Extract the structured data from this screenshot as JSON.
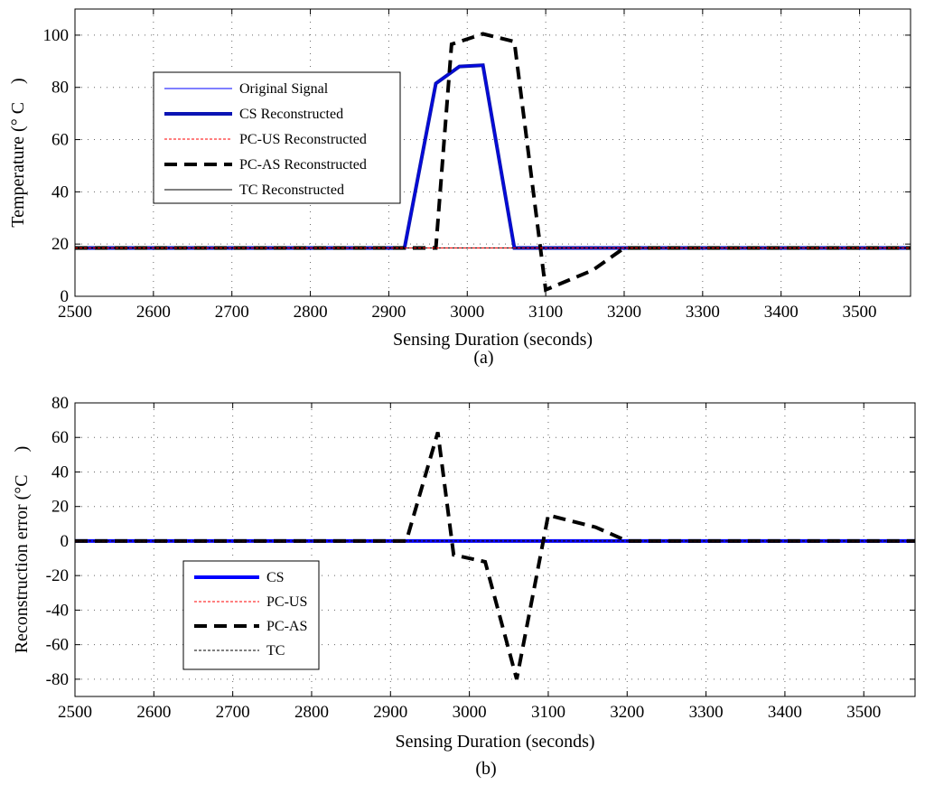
{
  "chart_data": [
    {
      "type": "line",
      "xlabel": "Sensing Duration (seconds)",
      "ylabel": "Temperature (° C    )",
      "caption": "(a)",
      "xlim": [
        2500,
        3565
      ],
      "ylim": [
        0,
        110
      ],
      "xticks": [
        "2500",
        "2600",
        "2700",
        "2800",
        "2900",
        "3000",
        "3100",
        "3200",
        "3300",
        "3400",
        "3500"
      ],
      "yticks": [
        "0",
        "20",
        "40",
        "60",
        "80",
        "100"
      ],
      "grid": true,
      "legend_position": "upper-left",
      "series": [
        {
          "name": "Original Signal",
          "color": "#0000ff",
          "style": "solid",
          "width": 1,
          "x": [
            2500,
            2920,
            2960,
            2990,
            3020,
            3060,
            3565
          ],
          "y": [
            18.5,
            18.5,
            81.5,
            88,
            88.5,
            18.5,
            18.5
          ]
        },
        {
          "name": "CS Reconstructed",
          "color": "#0a14b4",
          "style": "solid",
          "width": 4,
          "x": [
            2500,
            2920,
            2960,
            2990,
            3020,
            3060,
            3565
          ],
          "y": [
            18.5,
            18.5,
            81.5,
            88,
            88.5,
            18.5,
            18.5
          ]
        },
        {
          "name": "PC-US Reconstructed",
          "color": "#ff0000",
          "style": "dashed-thin",
          "width": 1,
          "x": [
            2500,
            3565
          ],
          "y": [
            18.5,
            18.5
          ]
        },
        {
          "name": "PC-AS Reconstructed",
          "color": "#000000",
          "style": "dashed",
          "width": 4,
          "x": [
            2500,
            2960,
            2980,
            3020,
            3060,
            3100,
            3160,
            3200,
            3565
          ],
          "y": [
            18.5,
            18.5,
            96.5,
            100.5,
            97.5,
            2.5,
            10,
            18.5,
            18.5
          ]
        },
        {
          "name": "TC Reconstructed",
          "color": "#000000",
          "style": "solid",
          "width": 1,
          "x": [
            2500,
            3565
          ],
          "y": [
            18.5,
            18.5
          ]
        }
      ]
    },
    {
      "type": "line",
      "xlabel": "Sensing Duration (seconds)",
      "ylabel": "Reconstruction error (°C     )",
      "caption": "(b)",
      "xlim": [
        2500,
        3565
      ],
      "ylim": [
        -90,
        80
      ],
      "xticks": [
        "2500",
        "2600",
        "2700",
        "2800",
        "2900",
        "3000",
        "3100",
        "3200",
        "3300",
        "3400",
        "3500"
      ],
      "yticks": [
        "80",
        "60",
        "40",
        "20",
        "0",
        "-20",
        "-40",
        "-60",
        "-80"
      ],
      "grid": true,
      "legend_position": "lower-left",
      "series": [
        {
          "name": "CS",
          "color": "#0000ff",
          "style": "solid",
          "width": 4,
          "x": [
            2500,
            3565
          ],
          "y": [
            0,
            0
          ]
        },
        {
          "name": "PC-US",
          "color": "#ff0000",
          "style": "dashed-thin",
          "width": 1,
          "x": [
            2500,
            3565
          ],
          "y": [
            0,
            0
          ]
        },
        {
          "name": "PC-AS",
          "color": "#000000",
          "style": "dashed",
          "width": 4,
          "x": [
            2500,
            2920,
            2960,
            2980,
            3020,
            3060,
            3100,
            3160,
            3200,
            3565
          ],
          "y": [
            0,
            0,
            63,
            -8,
            -12,
            -80,
            15,
            8,
            0,
            0
          ]
        },
        {
          "name": "TC",
          "color": "#000000",
          "style": "dashed-thin",
          "width": 1,
          "x": [
            2500,
            3565
          ],
          "y": [
            0,
            0
          ]
        }
      ]
    }
  ]
}
